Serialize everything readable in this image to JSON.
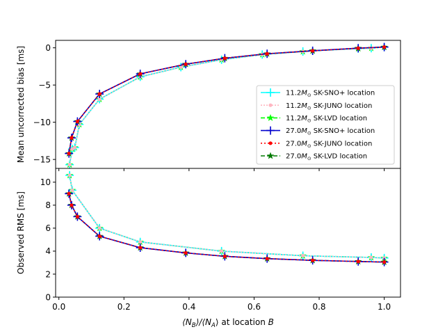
{
  "chart_data": [
    {
      "panel": "top",
      "type": "line",
      "ylabel": "Mean uncorrected bias [ms]",
      "xlabel": "",
      "xlim": [
        -0.01,
        1.05
      ],
      "ylim": [
        -16.2,
        1.0
      ],
      "yticks": [
        0,
        -5,
        -10,
        -15
      ],
      "ytick_labels": [
        "0",
        "−5",
        "−10",
        "−15"
      ],
      "grid": false,
      "legend_position": "lower right",
      "series": [
        {
          "key": "s112_snoplus",
          "name": "SK-SNO+ location",
          "mass_prefix": "11.2",
          "color": "#00ffff",
          "dash": "",
          "marker": "plus",
          "x": [
            0.033,
            0.041,
            0.049,
            0.063,
            0.125,
            0.25,
            0.375,
            0.5,
            0.625,
            0.75,
            0.78,
            0.92,
            0.96,
            1.0
          ],
          "y": [
            -15.7,
            -13.6,
            -13.4,
            -10.3,
            -6.9,
            -3.9,
            -2.6,
            -1.6,
            -0.9,
            -0.5,
            -0.4,
            -0.1,
            -0.05,
            0.1
          ]
        },
        {
          "key": "s112_juno",
          "name": "SK-JUNO location",
          "mass_prefix": "11.2",
          "color": "#ffb6c1",
          "dash": "2,2",
          "marker": "dot",
          "x": [
            0.033,
            0.041,
            0.049,
            0.063,
            0.125,
            0.25,
            0.375,
            0.5,
            0.625,
            0.75,
            0.78,
            0.92,
            0.96,
            1.0
          ],
          "y": [
            -15.7,
            -13.6,
            -13.4,
            -10.3,
            -6.9,
            -3.9,
            -2.6,
            -1.6,
            -0.9,
            -0.5,
            -0.4,
            -0.1,
            -0.05,
            0.1
          ]
        },
        {
          "key": "s112_lvd",
          "name": "SK-LVD location",
          "mass_prefix": "11.2",
          "color": "#00ff00",
          "dash": "6,3",
          "marker": "star",
          "x": [
            0.033,
            0.041,
            0.049,
            0.063,
            0.125,
            0.25,
            0.375,
            0.5,
            0.625,
            0.75,
            0.78,
            0.92,
            0.96,
            1.0
          ],
          "y": [
            -15.7,
            -13.6,
            -13.4,
            -10.3,
            -6.9,
            -3.9,
            -2.6,
            -1.6,
            -0.9,
            -0.5,
            -0.4,
            -0.1,
            -0.05,
            0.1
          ]
        },
        {
          "key": "s270_snoplus",
          "name": "SK-SNO+ location",
          "mass_prefix": "27.0",
          "color": "#0000cd",
          "dash": "",
          "marker": "plus",
          "x": [
            0.031,
            0.039,
            0.057,
            0.125,
            0.25,
            0.39,
            0.51,
            0.64,
            0.78,
            0.92,
            1.0
          ],
          "y": [
            -14.2,
            -12.1,
            -9.9,
            -6.2,
            -3.5,
            -2.2,
            -1.4,
            -0.8,
            -0.4,
            -0.05,
            0.1
          ]
        },
        {
          "key": "s270_juno",
          "name": "SK-JUNO location",
          "mass_prefix": "27.0",
          "color": "#ff0000",
          "dash": "2,3",
          "marker": "dot",
          "x": [
            0.031,
            0.039,
            0.057,
            0.125,
            0.25,
            0.39,
            0.51,
            0.64,
            0.78,
            0.92,
            1.0
          ],
          "y": [
            -14.2,
            -12.1,
            -9.9,
            -6.2,
            -3.5,
            -2.2,
            -1.4,
            -0.8,
            -0.4,
            -0.05,
            0.1
          ]
        },
        {
          "key": "s270_lvd",
          "name": "SK-LVD location",
          "mass_prefix": "27.0",
          "color": "#007a00",
          "dash": "6,3",
          "marker": "star",
          "x": [
            0.031,
            0.039,
            0.057,
            0.125,
            0.25,
            0.39,
            0.51,
            0.64,
            0.78,
            0.92,
            1.0
          ],
          "y": [
            -14.2,
            -12.1,
            -9.9,
            -6.2,
            -3.5,
            -2.2,
            -1.4,
            -0.8,
            -0.4,
            -0.05,
            0.1
          ]
        }
      ]
    },
    {
      "panel": "bottom",
      "type": "line",
      "ylabel": "Observed RMS [ms]",
      "xlabel_parts": [
        "⟨N",
        "B",
        "⟩/⟨N",
        "A",
        "⟩ at location ",
        "B"
      ],
      "xlim": [
        -0.01,
        1.05
      ],
      "ylim": [
        0,
        11.2
      ],
      "xticks": [
        0.0,
        0.2,
        0.4,
        0.6,
        0.8,
        1.0
      ],
      "xtick_labels": [
        "0.0",
        "0.2",
        "0.4",
        "0.6",
        "0.8",
        "1.0"
      ],
      "yticks": [
        0,
        2,
        4,
        6,
        8,
        10
      ],
      "ytick_labels": [
        "0",
        "2",
        "4",
        "6",
        "8",
        "10"
      ],
      "grid": false,
      "series": [
        {
          "key": "s112_snoplus",
          "color": "#00ffff",
          "dash": "",
          "marker": "plus",
          "x": [
            0.033,
            0.041,
            0.125,
            0.25,
            0.5,
            0.75,
            0.96,
            1.0
          ],
          "y": [
            10.6,
            9.3,
            6.0,
            4.8,
            4.0,
            3.6,
            3.45,
            3.4
          ]
        },
        {
          "key": "s112_juno",
          "color": "#ffb6c1",
          "dash": "2,2",
          "marker": "dot",
          "x": [
            0.033,
            0.041,
            0.125,
            0.25,
            0.5,
            0.75,
            0.96,
            1.0
          ],
          "y": [
            10.6,
            9.3,
            6.0,
            4.8,
            4.0,
            3.6,
            3.45,
            3.4
          ]
        },
        {
          "key": "s112_lvd",
          "color": "#00ff00",
          "dash": "6,3",
          "marker": "star",
          "x": [
            0.033,
            0.041,
            0.125,
            0.25,
            0.5,
            0.75,
            0.96,
            1.0
          ],
          "y": [
            10.6,
            9.3,
            6.0,
            4.8,
            4.0,
            3.6,
            3.45,
            3.4
          ]
        },
        {
          "key": "s270_snoplus",
          "color": "#0000cd",
          "dash": "",
          "marker": "plus",
          "x": [
            0.031,
            0.039,
            0.057,
            0.125,
            0.25,
            0.39,
            0.51,
            0.64,
            0.78,
            0.92,
            1.0
          ],
          "y": [
            9.0,
            8.0,
            7.0,
            5.3,
            4.3,
            3.85,
            3.55,
            3.35,
            3.2,
            3.1,
            3.05
          ]
        },
        {
          "key": "s270_juno",
          "color": "#ff0000",
          "dash": "2,3",
          "marker": "dot",
          "x": [
            0.031,
            0.039,
            0.057,
            0.125,
            0.25,
            0.39,
            0.51,
            0.64,
            0.78,
            0.92,
            1.0
          ],
          "y": [
            9.0,
            8.0,
            7.0,
            5.3,
            4.3,
            3.85,
            3.55,
            3.35,
            3.2,
            3.1,
            3.05
          ]
        },
        {
          "key": "s270_lvd",
          "color": "#007a00",
          "dash": "6,3",
          "marker": "star",
          "x": [
            0.031,
            0.039,
            0.057,
            0.125,
            0.25,
            0.39,
            0.51,
            0.64,
            0.78,
            0.92,
            1.0
          ],
          "y": [
            9.0,
            8.0,
            7.0,
            5.3,
            4.3,
            3.85,
            3.55,
            3.35,
            3.2,
            3.1,
            3.05
          ]
        }
      ]
    }
  ],
  "legend": {
    "mass_symbol": "M",
    "mass_subscript": "⊙",
    "order": [
      "s112_snoplus",
      "s112_juno",
      "s112_lvd",
      "s270_snoplus",
      "s270_juno",
      "s270_lvd"
    ]
  }
}
